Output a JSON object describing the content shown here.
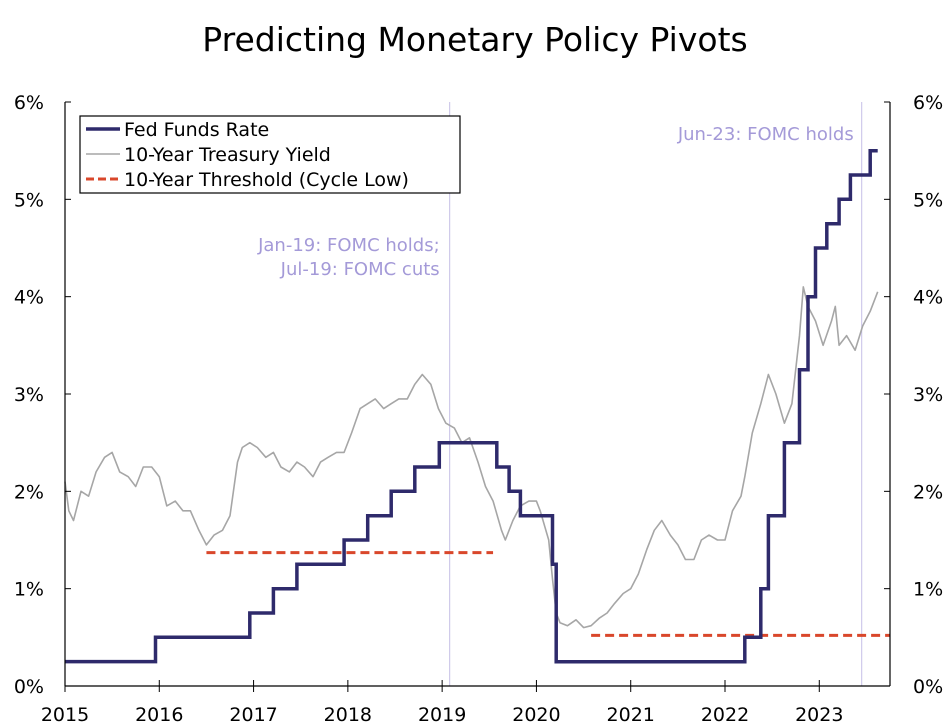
{
  "chart_data": {
    "type": "line",
    "title": "Predicting Monetary Policy Pivots",
    "xlabel": "",
    "ylabel": "",
    "xlim": [
      2015.0,
      2023.75
    ],
    "ylim": [
      0,
      6
    ],
    "x_tick_labels": [
      "2015",
      "2016",
      "2017",
      "2018",
      "2019",
      "2020",
      "2021",
      "2022",
      "2023"
    ],
    "y_tick_labels": [
      "0%",
      "1%",
      "2%",
      "3%",
      "4%",
      "5%",
      "6%"
    ],
    "legend": {
      "position": "top-left",
      "entries": [
        "Fed Funds Rate",
        "10-Year Treasury Yield",
        "10-Year Threshold (Cycle Low)"
      ]
    },
    "colors": {
      "fed_funds": "#2e2a6b",
      "treasury": "#a6a6a6",
      "threshold": "#d9472b",
      "event_line": "#c5bfe6",
      "annotation": "#a49ad8",
      "axis": "#000000"
    },
    "annotations": [
      {
        "x": 2019.08,
        "lines": [
          "Jan-19: FOMC holds;",
          "Jul-19: FOMC cuts"
        ]
      },
      {
        "x": 2023.45,
        "lines": [
          "Jun-23: FOMC holds"
        ]
      }
    ],
    "series": [
      {
        "name": "Fed Funds Rate",
        "style": "step",
        "x": [
          2015.0,
          2015.96,
          2016.96,
          2017.21,
          2017.46,
          2017.96,
          2018.21,
          2018.46,
          2018.71,
          2018.97,
          2019.58,
          2019.71,
          2019.83,
          2020.17,
          2020.21,
          2022.21,
          2022.38,
          2022.46,
          2022.63,
          2022.79,
          2022.88,
          2022.96,
          2023.08,
          2023.21,
          2023.33,
          2023.54,
          2023.62
        ],
        "values": [
          0.25,
          0.5,
          0.75,
          1.0,
          1.25,
          1.5,
          1.75,
          2.0,
          2.25,
          2.5,
          2.25,
          2.0,
          1.75,
          1.25,
          0.25,
          0.5,
          1.0,
          1.75,
          2.5,
          3.25,
          4.0,
          4.5,
          4.75,
          5.0,
          5.25,
          5.5,
          5.5
        ]
      },
      {
        "name": "10-Year Treasury Yield",
        "style": "line",
        "x": [
          2015.0,
          2015.04,
          2015.09,
          2015.17,
          2015.25,
          2015.33,
          2015.42,
          2015.5,
          2015.58,
          2015.67,
          2015.75,
          2015.83,
          2015.92,
          2016.0,
          2016.08,
          2016.17,
          2016.25,
          2016.33,
          2016.42,
          2016.5,
          2016.58,
          2016.67,
          2016.75,
          2016.83,
          2016.88,
          2016.96,
          2017.04,
          2017.13,
          2017.21,
          2017.29,
          2017.38,
          2017.46,
          2017.54,
          2017.63,
          2017.71,
          2017.79,
          2017.88,
          2017.96,
          2018.04,
          2018.13,
          2018.21,
          2018.29,
          2018.38,
          2018.46,
          2018.54,
          2018.63,
          2018.71,
          2018.79,
          2018.88,
          2018.96,
          2019.04,
          2019.13,
          2019.21,
          2019.29,
          2019.38,
          2019.46,
          2019.54,
          2019.63,
          2019.67,
          2019.75,
          2019.83,
          2019.92,
          2020.0,
          2020.04,
          2020.13,
          2020.17,
          2020.21,
          2020.25,
          2020.33,
          2020.42,
          2020.5,
          2020.58,
          2020.67,
          2020.75,
          2020.83,
          2020.92,
          2021.0,
          2021.08,
          2021.17,
          2021.25,
          2021.33,
          2021.42,
          2021.5,
          2021.58,
          2021.67,
          2021.75,
          2021.83,
          2021.92,
          2022.0,
          2022.08,
          2022.17,
          2022.21,
          2022.29,
          2022.38,
          2022.46,
          2022.54,
          2022.63,
          2022.71,
          2022.79,
          2022.83,
          2022.88,
          2022.96,
          2023.04,
          2023.13,
          2023.17,
          2023.21,
          2023.29,
          2023.38,
          2023.46,
          2023.54,
          2023.62
        ],
        "values": [
          2.1,
          1.8,
          1.7,
          2.0,
          1.95,
          2.2,
          2.35,
          2.4,
          2.2,
          2.15,
          2.05,
          2.25,
          2.25,
          2.15,
          1.85,
          1.9,
          1.8,
          1.8,
          1.6,
          1.45,
          1.55,
          1.6,
          1.75,
          2.3,
          2.45,
          2.5,
          2.45,
          2.35,
          2.4,
          2.25,
          2.2,
          2.3,
          2.25,
          2.15,
          2.3,
          2.35,
          2.4,
          2.4,
          2.6,
          2.85,
          2.9,
          2.95,
          2.85,
          2.9,
          2.95,
          2.95,
          3.1,
          3.2,
          3.1,
          2.85,
          2.7,
          2.65,
          2.5,
          2.55,
          2.3,
          2.05,
          1.9,
          1.6,
          1.5,
          1.7,
          1.85,
          1.9,
          1.9,
          1.8,
          1.5,
          1.1,
          0.75,
          0.65,
          0.62,
          0.68,
          0.6,
          0.62,
          0.7,
          0.75,
          0.85,
          0.95,
          1.0,
          1.15,
          1.4,
          1.6,
          1.7,
          1.55,
          1.45,
          1.3,
          1.3,
          1.5,
          1.55,
          1.5,
          1.5,
          1.8,
          1.95,
          2.15,
          2.6,
          2.9,
          3.2,
          3.0,
          2.7,
          2.9,
          3.6,
          4.1,
          3.9,
          3.75,
          3.5,
          3.75,
          3.9,
          3.5,
          3.6,
          3.45,
          3.7,
          3.85,
          4.05
        ]
      },
      {
        "name": "10-Year Threshold (Cycle Low)",
        "style": "dashed",
        "segments": [
          {
            "x": [
              2016.5,
              2019.54
            ],
            "values": [
              1.37,
              1.37
            ]
          },
          {
            "x": [
              2020.58,
              2023.75
            ],
            "values": [
              0.52,
              0.52
            ]
          }
        ]
      }
    ]
  }
}
